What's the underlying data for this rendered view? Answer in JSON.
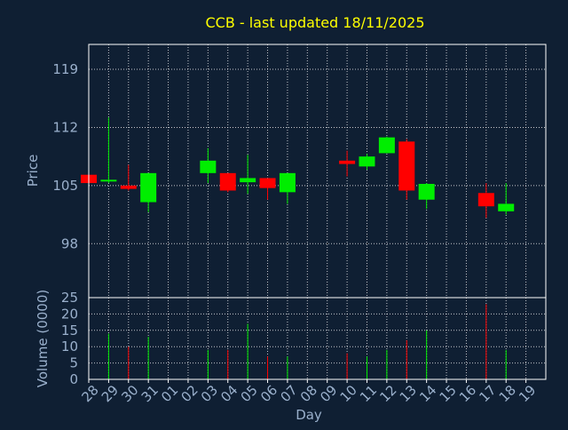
{
  "chart_data": {
    "type": "candlestick",
    "title": "CCB - last updated 18/11/2025",
    "xlabel": "Day",
    "colors": {
      "background": "#0f1f33",
      "axis": "#ffffff",
      "grid": "#ffffff",
      "title": "#ffff00",
      "label": "#9ab0cc",
      "up": "#00ee00",
      "down": "#ff0000"
    },
    "x_ticks": [
      "28",
      "29",
      "30",
      "31",
      "01",
      "02",
      "03",
      "04",
      "05",
      "06",
      "07",
      "08",
      "09",
      "10",
      "11",
      "12",
      "13",
      "14",
      "15",
      "16",
      "17",
      "18",
      "19"
    ],
    "price_panel": {
      "ylabel": "Price",
      "ylim": [
        91.5,
        122.0
      ],
      "y_ticks": [
        98,
        105,
        112,
        119
      ],
      "grid": true
    },
    "volume_panel": {
      "ylabel": "Volume (0000)",
      "ylim": [
        0,
        25
      ],
      "y_ticks": [
        0,
        5,
        10,
        15,
        20,
        25
      ],
      "grid": true
    },
    "candles": [
      {
        "x": "28",
        "open": 106.3,
        "high": 106.3,
        "low": 105.3,
        "close": 105.3,
        "volume": 0
      },
      {
        "x": "29",
        "open": 105.5,
        "high": 113.2,
        "low": 105.3,
        "close": 105.7,
        "volume": 14
      },
      {
        "x": "30",
        "open": 105.0,
        "high": 107.5,
        "low": 104.4,
        "close": 104.6,
        "volume": 10
      },
      {
        "x": "31",
        "open": 103.0,
        "high": 106.5,
        "low": 101.8,
        "close": 106.5,
        "volume": 13
      },
      {
        "x": "03",
        "open": 106.5,
        "high": 109.5,
        "low": 105.3,
        "close": 108.0,
        "volume": 9
      },
      {
        "x": "04",
        "open": 106.5,
        "high": 106.5,
        "low": 104.2,
        "close": 104.4,
        "volume": 9
      },
      {
        "x": "05",
        "open": 105.4,
        "high": 108.7,
        "low": 104.0,
        "close": 105.9,
        "volume": 17
      },
      {
        "x": "06",
        "open": 105.9,
        "high": 105.9,
        "low": 103.3,
        "close": 104.7,
        "volume": 7
      },
      {
        "x": "07",
        "open": 104.2,
        "high": 106.5,
        "low": 102.8,
        "close": 106.5,
        "volume": 7
      },
      {
        "x": "10",
        "open": 108.0,
        "high": 109.2,
        "low": 106.1,
        "close": 107.6,
        "volume": 8
      },
      {
        "x": "11",
        "open": 107.3,
        "high": 108.8,
        "low": 106.9,
        "close": 108.5,
        "volume": 7
      },
      {
        "x": "12",
        "open": 108.9,
        "high": 110.9,
        "low": 108.9,
        "close": 110.8,
        "volume": 9
      },
      {
        "x": "13",
        "open": 110.3,
        "high": 110.6,
        "low": 103.3,
        "close": 104.4,
        "volume": 12
      },
      {
        "x": "14",
        "open": 103.3,
        "high": 105.3,
        "low": 102.2,
        "close": 105.2,
        "volume": 15
      },
      {
        "x": "17",
        "open": 104.1,
        "high": 105.3,
        "low": 101.1,
        "close": 102.5,
        "volume": 23
      },
      {
        "x": "18",
        "open": 101.9,
        "high": 105.3,
        "low": 101.5,
        "close": 102.8,
        "volume": 9
      }
    ]
  }
}
